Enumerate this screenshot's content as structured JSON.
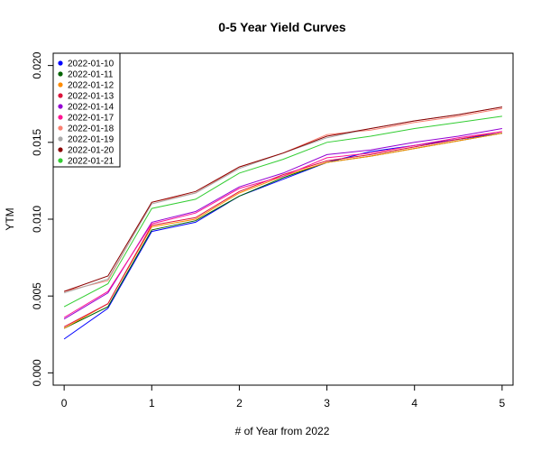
{
  "chart_data": {
    "type": "line",
    "title": "0-5 Year Yield Curves",
    "xlabel": "# of Year from 2022",
    "ylabel": "YTM",
    "xlim": [
      -0.125,
      5.125
    ],
    "ylim": [
      -0.0008,
      0.0208
    ],
    "x_ticks": [
      0,
      1,
      2,
      3,
      4,
      5
    ],
    "y_ticks": [
      0.0,
      0.005,
      0.01,
      0.015,
      0.02
    ],
    "y_tick_labels": [
      "0.000",
      "0.005",
      "0.010",
      "0.015",
      "0.020"
    ],
    "legend_position": "top-left",
    "grid": false,
    "x": [
      0,
      0.5,
      1,
      1.5,
      2,
      2.5,
      3,
      3.5,
      4,
      4.5,
      5
    ],
    "series": [
      {
        "name": "2022-01-10",
        "color": "#0000FF",
        "values": [
          0.0022,
          0.0042,
          0.0092,
          0.0098,
          0.0115,
          0.0126,
          0.0137,
          0.0144,
          0.0148,
          0.0152,
          0.0156
        ]
      },
      {
        "name": "2022-01-11",
        "color": "#006400",
        "values": [
          0.0029,
          0.0043,
          0.0093,
          0.0099,
          0.0115,
          0.0127,
          0.0137,
          0.0141,
          0.0146,
          0.0151,
          0.0156
        ]
      },
      {
        "name": "2022-01-12",
        "color": "#FF8C00",
        "values": [
          0.0029,
          0.0045,
          0.0095,
          0.01,
          0.0117,
          0.0128,
          0.0137,
          0.0141,
          0.0146,
          0.0151,
          0.0156
        ]
      },
      {
        "name": "2022-01-13",
        "color": "#DC143C",
        "values": [
          0.003,
          0.0045,
          0.0096,
          0.0101,
          0.0118,
          0.0129,
          0.0138,
          0.0142,
          0.0147,
          0.0152,
          0.0157
        ]
      },
      {
        "name": "2022-01-14",
        "color": "#9400D3",
        "values": [
          0.0035,
          0.0052,
          0.0098,
          0.0105,
          0.0121,
          0.013,
          0.0142,
          0.0145,
          0.015,
          0.0154,
          0.0159
        ]
      },
      {
        "name": "2022-01-17",
        "color": "#FF1493",
        "values": [
          0.0036,
          0.0053,
          0.0097,
          0.0104,
          0.012,
          0.0128,
          0.014,
          0.0143,
          0.0148,
          0.0153,
          0.0157
        ]
      },
      {
        "name": "2022-01-18",
        "color": "#FA8072",
        "values": [
          0.0053,
          0.006,
          0.0111,
          0.0117,
          0.0134,
          0.0143,
          0.0155,
          0.0158,
          0.0163,
          0.0167,
          0.0172
        ]
      },
      {
        "name": "2022-01-19",
        "color": "#A9A9A9",
        "values": [
          0.0052,
          0.0061,
          0.011,
          0.0117,
          0.0133,
          0.0143,
          0.0153,
          0.0159,
          0.0164,
          0.0168,
          0.0173
        ]
      },
      {
        "name": "2022-01-20",
        "color": "#8B0000",
        "values": [
          0.0053,
          0.0063,
          0.0111,
          0.0118,
          0.0134,
          0.0143,
          0.0154,
          0.0159,
          0.0164,
          0.0168,
          0.0173
        ]
      },
      {
        "name": "2022-01-21",
        "color": "#32CD32",
        "values": [
          0.0043,
          0.0058,
          0.0107,
          0.0113,
          0.013,
          0.0139,
          0.015,
          0.0154,
          0.0159,
          0.0163,
          0.0167
        ]
      }
    ]
  }
}
